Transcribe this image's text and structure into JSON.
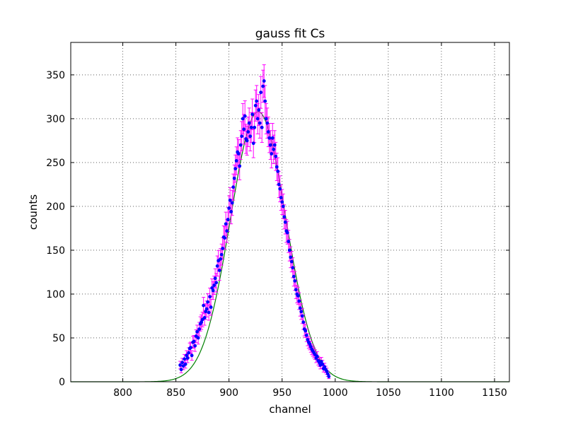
{
  "chart_data": {
    "type": "scatter",
    "title": "gauss fit Cs",
    "xlabel": "channel",
    "ylabel": "counts",
    "xlim": [
      751,
      1164
    ],
    "ylim": [
      0,
      387
    ],
    "xticks": [
      800,
      850,
      900,
      950,
      1000,
      1050,
      1100,
      1150
    ],
    "yticks": [
      0,
      50,
      100,
      150,
      200,
      250,
      300,
      350
    ],
    "grid": true,
    "legend": "none",
    "colors": {
      "points": "#0000ff",
      "errorbars": "#ff00ff",
      "fit": "#008000"
    },
    "fit": {
      "model": "gaussian",
      "amplitude": 308,
      "mean": 927.5,
      "sigma": 26
    },
    "series": [
      {
        "type": "errorbar",
        "x": [
          854,
          855,
          856,
          857,
          858,
          859,
          860,
          861,
          862,
          863,
          864,
          865,
          866,
          867,
          868,
          869,
          870,
          871,
          872,
          873,
          874,
          875,
          876,
          877,
          878,
          879,
          880,
          881,
          882,
          883,
          884,
          885,
          886,
          887,
          888,
          889,
          890,
          891,
          892,
          893,
          894,
          895,
          896,
          897,
          898,
          899,
          900,
          901,
          902,
          903,
          904,
          905,
          906,
          907,
          908,
          909,
          910,
          911,
          912,
          913,
          914,
          915,
          916,
          917,
          918,
          919,
          920,
          921,
          922,
          923,
          924,
          925,
          926,
          927,
          928,
          929,
          930,
          931,
          932,
          933,
          934,
          935,
          936,
          937,
          938,
          939,
          940,
          941,
          942,
          943,
          944,
          945,
          946,
          947,
          948,
          949,
          950,
          951,
          952,
          953,
          954,
          955,
          956,
          957,
          958,
          959,
          960,
          961,
          962,
          963,
          964,
          965,
          966,
          967,
          968,
          969,
          970,
          971,
          972,
          973,
          974,
          975,
          976,
          977,
          978,
          979,
          980,
          981,
          982,
          983,
          984,
          985,
          986,
          987,
          988,
          989,
          990,
          991,
          992,
          993,
          994
        ],
        "y": [
          19,
          14,
          22,
          18,
          26,
          20,
          30,
          27,
          33,
          38,
          39,
          30,
          45,
          46,
          41,
          52,
          57,
          50,
          60,
          66,
          68,
          71,
          87,
          73,
          80,
          83,
          91,
          79,
          97,
          85,
          107,
          104,
          110,
          118,
          113,
          132,
          138,
          127,
          140,
          145,
          152,
          165,
          164,
          180,
          172,
          185,
          198,
          207,
          194,
          204,
          222,
          232,
          243,
          252,
          262,
          260,
          246,
          270,
          280,
          300,
          288,
          303,
          277,
          275,
          285,
          295,
          280,
          290,
          305,
          272,
          290,
          315,
          320,
          300,
          310,
          295,
          330,
          290,
          337,
          343,
          320,
          300,
          295,
          285,
          278,
          270,
          260,
          278,
          265,
          270,
          257,
          245,
          240,
          225,
          220,
          210,
          205,
          200,
          188,
          182,
          172,
          170,
          160,
          150,
          142,
          137,
          130,
          120,
          115,
          105,
          100,
          98,
          92,
          84,
          80,
          75,
          68,
          60,
          58,
          53,
          48,
          45,
          43,
          40,
          37,
          35,
          33,
          31,
          27,
          29,
          24,
          22,
          19,
          23,
          20,
          15,
          17,
          14,
          12,
          9,
          6
        ],
        "yerr_type": "sqrt"
      }
    ]
  }
}
